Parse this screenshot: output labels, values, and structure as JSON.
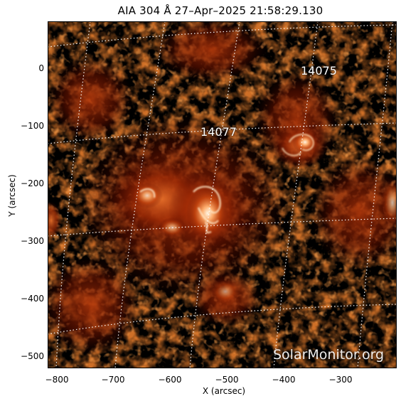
{
  "title": "AIA 304 Å 27–Apr–2025 21:58:29.130",
  "x_axis": {
    "label": "X (arcsec)",
    "ticks": [
      "−800",
      "−700",
      "−600",
      "−500",
      "−400",
      "−300"
    ]
  },
  "y_axis": {
    "label": "Y (arcsec)",
    "ticks": [
      "0",
      "−100",
      "−200",
      "−300",
      "−400",
      "−500"
    ]
  },
  "active_regions": [
    {
      "number": "14075"
    },
    {
      "number": "14077"
    }
  ],
  "watermark": "SolarMonitor.org",
  "colors": {
    "background": "#000000",
    "emission_dark": "#5a0800",
    "emission_mid": "#c2400b",
    "emission_bright": "#ffb070",
    "emission_peak": "#fff4e0",
    "grid": "#ffffff"
  }
}
